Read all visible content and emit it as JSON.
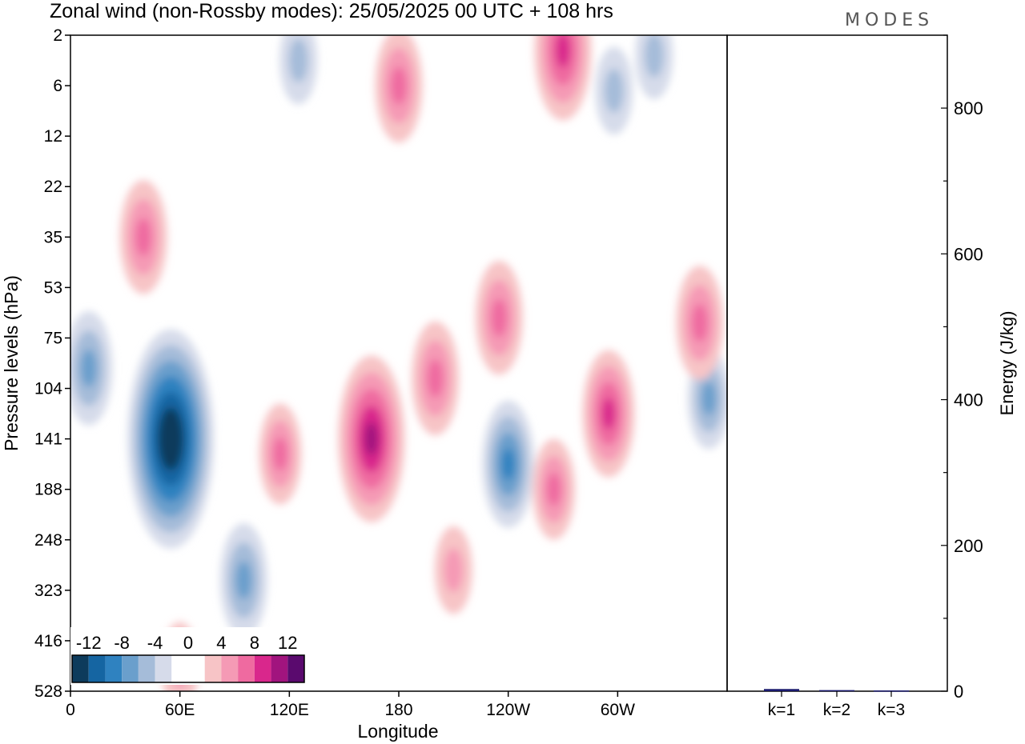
{
  "chart_data": [
    {
      "type": "heatmap",
      "title": "Zonal wind (non-Rossby modes):  25/05/2025  00 UTC  + 108 hrs",
      "xlabel": "Longitude",
      "ylabel": "Pressure levels (hPa)",
      "x_ticks": [
        "0",
        "60E",
        "120E",
        "180",
        "120W",
        "60W"
      ],
      "y_ticks": [
        "2",
        "6",
        "12",
        "22",
        "35",
        "53",
        "75",
        "104",
        "141",
        "188",
        "248",
        "323",
        "416",
        "528"
      ],
      "colorbar": {
        "labels": [
          "-12",
          "-8",
          "-4",
          "0",
          "4",
          "8",
          "12"
        ],
        "colors": [
          "#0d3b5c",
          "#1565a2",
          "#2f82c0",
          "#6a9fcc",
          "#a5bcd9",
          "#d6dbea",
          "#ffffff",
          "#ffffff",
          "#f7c4c6",
          "#f59ab5",
          "#ef6aa0",
          "#d9278c",
          "#a1147e",
          "#5a0a6e"
        ]
      },
      "features": [
        {
          "sign": "negative",
          "lon": 55,
          "level_index": 8.0,
          "value": -14
        },
        {
          "sign": "negative",
          "lon": 10,
          "level_index": 6.6,
          "value": -6
        },
        {
          "sign": "negative",
          "lon": 95,
          "level_index": 10.8,
          "value": -6
        },
        {
          "sign": "negative",
          "lon": 240,
          "level_index": 8.5,
          "value": -7
        },
        {
          "sign": "negative",
          "lon": 350,
          "level_index": 7.2,
          "value": -5
        },
        {
          "sign": "negative",
          "lon": 320,
          "level_index": 0.4,
          "value": -4
        },
        {
          "sign": "negative",
          "lon": 125,
          "level_index": 0.5,
          "value": -4
        },
        {
          "sign": "negative",
          "lon": 298,
          "level_index": 1.1,
          "value": -4
        },
        {
          "sign": "positive",
          "lon": 165,
          "level_index": 8.0,
          "value": 10
        },
        {
          "sign": "positive",
          "lon": 200,
          "level_index": 6.8,
          "value": 6
        },
        {
          "sign": "positive",
          "lon": 235,
          "level_index": 5.6,
          "value": 6
        },
        {
          "sign": "positive",
          "lon": 295,
          "level_index": 7.5,
          "value": 7
        },
        {
          "sign": "positive",
          "lon": 345,
          "level_index": 5.7,
          "value": 6
        },
        {
          "sign": "positive",
          "lon": 270,
          "level_index": 0.3,
          "value": 8
        },
        {
          "sign": "positive",
          "lon": 180,
          "level_index": 1.0,
          "value": 6
        },
        {
          "sign": "positive",
          "lon": 40,
          "level_index": 4.0,
          "value": 6
        },
        {
          "sign": "positive",
          "lon": 115,
          "level_index": 8.3,
          "value": 5
        },
        {
          "sign": "positive",
          "lon": 265,
          "level_index": 9.0,
          "value": 5
        },
        {
          "sign": "positive",
          "lon": 210,
          "level_index": 10.6,
          "value": 4
        },
        {
          "sign": "positive",
          "lon": 60,
          "level_index": 12.5,
          "value": 4
        }
      ]
    },
    {
      "type": "bar",
      "ylabel": "Energy (J/kg)",
      "categories": [
        "k=1",
        "k=2",
        "k=3"
      ],
      "values": [
        3,
        1.5,
        1
      ],
      "ylim": [
        0,
        900
      ],
      "y_ticks": [
        "0",
        "200",
        "400",
        "600",
        "800"
      ],
      "bar_color": "#1a1a6e"
    }
  ],
  "brand": "MODES"
}
